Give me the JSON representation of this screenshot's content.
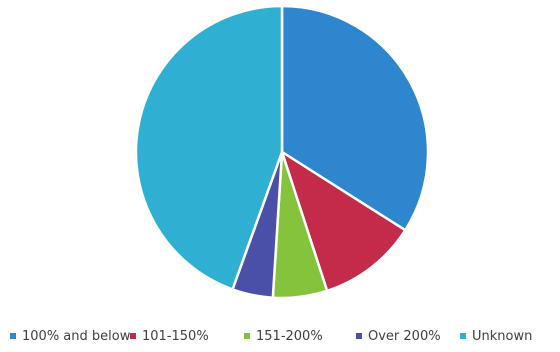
{
  "chart_data": {
    "type": "pie",
    "title": "",
    "slices": [
      {
        "label": "100% and below",
        "value": 34,
        "color": "#2e86cf"
      },
      {
        "label": "101-150%",
        "value": 11,
        "color": "#c42a4a"
      },
      {
        "label": "151-200%",
        "value": 6,
        "color": "#86c33c"
      },
      {
        "label": "Over 200%",
        "value": 4.5,
        "color": "#4a4fa8"
      },
      {
        "label": "Unknown",
        "value": 44.5,
        "color": "#2fb0d2"
      }
    ],
    "start_angle_deg": 0,
    "direction": "clockwise",
    "legend_position": "bottom"
  }
}
